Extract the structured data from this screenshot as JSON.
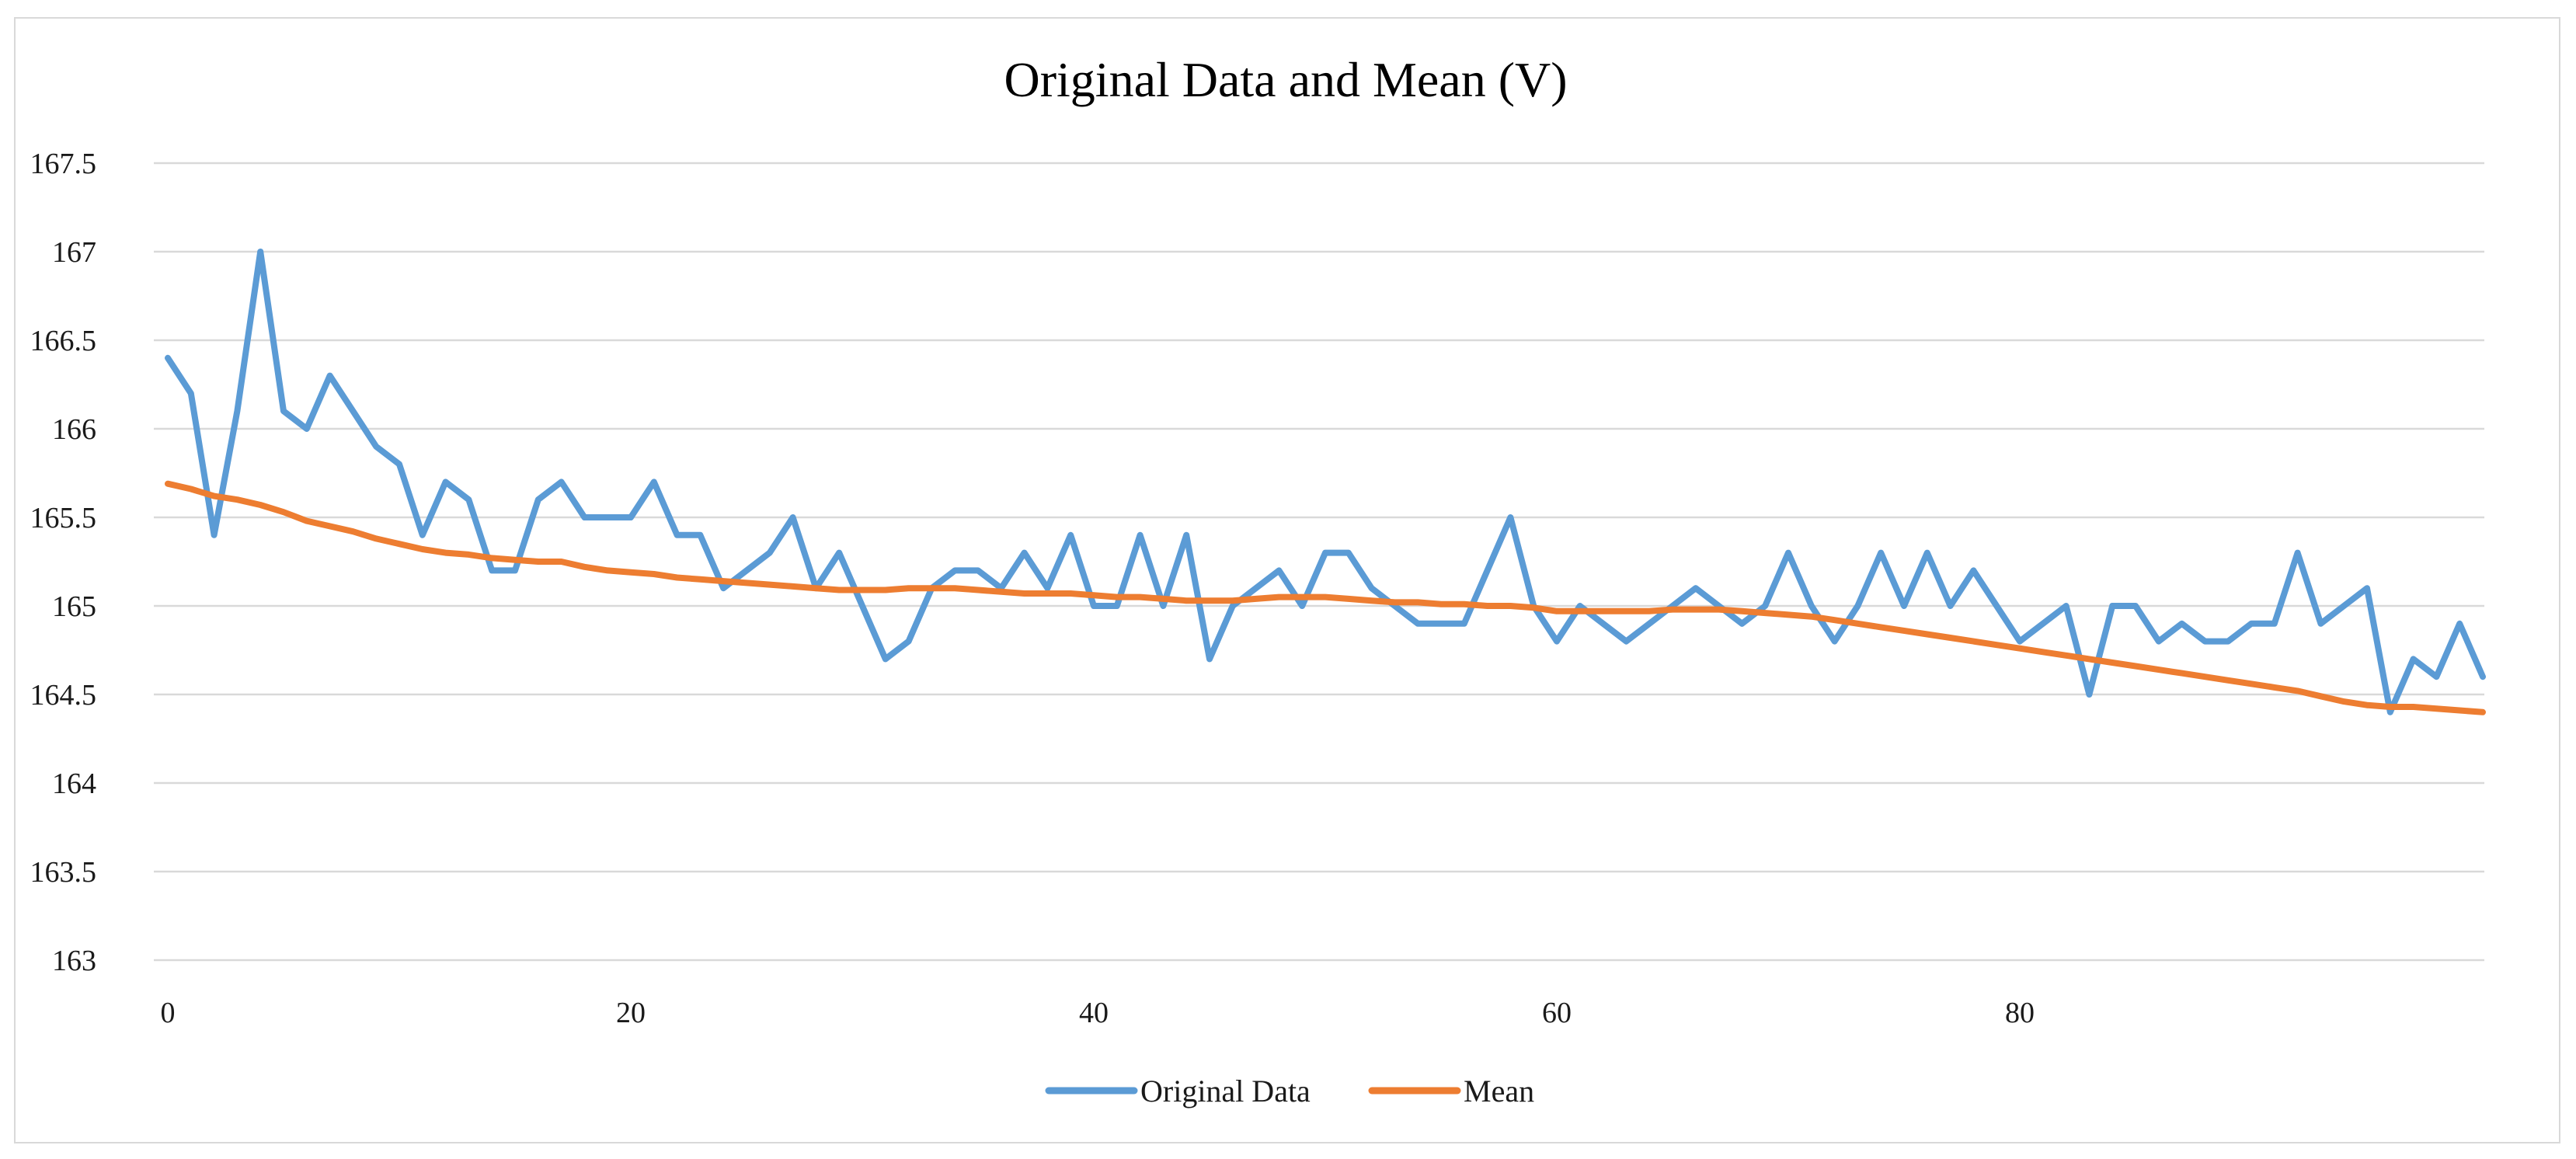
{
  "chart_data": {
    "type": "line",
    "title": "Original Data and Mean (V)",
    "xlabel": "",
    "ylabel": "",
    "xlim": [
      0,
      99
    ],
    "ylim": [
      163,
      167.5
    ],
    "grid": true,
    "legend_position": "bottom",
    "x_ticks": [
      0,
      20,
      40,
      60,
      80
    ],
    "y_ticks": [
      163,
      163.5,
      164,
      164.5,
      165,
      165.5,
      166,
      166.5,
      167,
      167.5
    ],
    "x_tick_labels": [
      "0",
      "20",
      "40",
      "60",
      "80"
    ],
    "y_tick_labels": [
      "163",
      "163.5",
      "164",
      "164.5",
      "165",
      "165.5",
      "166",
      "166.5",
      "167",
      "167.5"
    ],
    "series": [
      {
        "name": "Original Data",
        "color": "#5b9bd5",
        "values": [
          166.4,
          166.2,
          165.4,
          166.1,
          167.0,
          166.1,
          166.0,
          166.3,
          166.1,
          165.9,
          165.8,
          165.4,
          165.7,
          165.6,
          165.2,
          165.2,
          165.6,
          165.7,
          165.5,
          165.5,
          165.5,
          165.7,
          165.4,
          165.4,
          165.1,
          165.2,
          165.3,
          165.5,
          165.1,
          165.3,
          165.0,
          164.7,
          164.8,
          165.1,
          165.2,
          165.2,
          165.1,
          165.3,
          165.1,
          165.4,
          165.0,
          165.0,
          165.4,
          165.0,
          165.4,
          164.7,
          165.0,
          165.1,
          165.2,
          165.0,
          165.3,
          165.3,
          165.1,
          165.0,
          164.9,
          164.9,
          164.9,
          165.2,
          165.5,
          165.0,
          164.8,
          165.0,
          164.9,
          164.8,
          164.9,
          165.0,
          165.1,
          165.0,
          164.9,
          165.0,
          165.3,
          165.0,
          164.8,
          165.0,
          165.3,
          165.0,
          165.3,
          165.0,
          165.2,
          165.0,
          164.8,
          164.9,
          165.0,
          164.5,
          165.0,
          165.0,
          164.8,
          164.9,
          164.8,
          164.8,
          164.9,
          164.9,
          165.3,
          164.9,
          165.0,
          165.1,
          164.4,
          164.7,
          164.6,
          164.9,
          164.6
        ]
      },
      {
        "name": "Mean",
        "color": "#ed7d31",
        "values": [
          165.69,
          165.66,
          165.62,
          165.6,
          165.57,
          165.53,
          165.48,
          165.45,
          165.42,
          165.38,
          165.35,
          165.32,
          165.3,
          165.29,
          165.27,
          165.26,
          165.25,
          165.25,
          165.22,
          165.2,
          165.19,
          165.18,
          165.16,
          165.15,
          165.14,
          165.13,
          165.12,
          165.11,
          165.1,
          165.09,
          165.09,
          165.09,
          165.1,
          165.1,
          165.1,
          165.09,
          165.08,
          165.07,
          165.07,
          165.07,
          165.06,
          165.05,
          165.05,
          165.04,
          165.03,
          165.03,
          165.03,
          165.04,
          165.05,
          165.05,
          165.05,
          165.04,
          165.03,
          165.02,
          165.02,
          165.01,
          165.01,
          165.0,
          165.0,
          164.99,
          164.97,
          164.97,
          164.97,
          164.97,
          164.97,
          164.98,
          164.98,
          164.98,
          164.97,
          164.96,
          164.95,
          164.94,
          164.92,
          164.9,
          164.88,
          164.86,
          164.84,
          164.82,
          164.8,
          164.78,
          164.76,
          164.74,
          164.72,
          164.7,
          164.68,
          164.66,
          164.64,
          164.62,
          164.6,
          164.58,
          164.56,
          164.54,
          164.52,
          164.49,
          164.46,
          164.44,
          164.43,
          164.43,
          164.42,
          164.41,
          164.4
        ]
      }
    ]
  }
}
